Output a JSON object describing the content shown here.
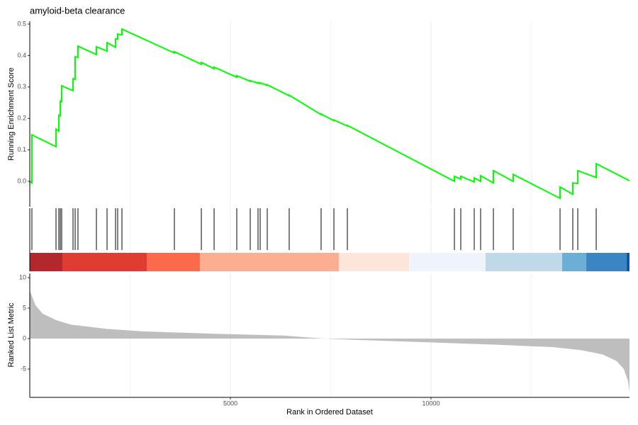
{
  "chart_data": {
    "type": "gsea",
    "title": "amyloid-beta clearance",
    "ylabel": "Running Enrichment Score",
    "ylabel2": "Ranked List Metric",
    "xlabel": "Rank in Ordered Dataset",
    "xlim": [
      0,
      14947
    ],
    "xticks": [
      5000,
      10000
    ],
    "minor_xgrid": [
      2500,
      7500,
      12500
    ],
    "ylim": [
      -0.081,
      0.509
    ],
    "yticks": [
      {
        "value": 0,
        "label": "0.0"
      },
      0.1,
      0.2,
      0.3,
      0.4,
      0.5
    ],
    "line_color": "#00ff00",
    "x": [
      0,
      53,
      53,
      654,
      654,
      724,
      724,
      760,
      760,
      795,
      795,
      1078,
      1078,
      1131,
      1131,
      1201,
      1201,
      1661,
      1661,
      1926,
      1926,
      2138,
      2138,
      2191,
      2191,
      2297,
      2297,
      3604,
      3604,
      4276,
      4276,
      4594,
      4594,
      5159,
      5159,
      5495,
      5495,
      5689,
      5689,
      5742,
      5742,
      5919,
      5919,
      6466,
      6466,
      7261,
      7261,
      7580,
      7580,
      7915,
      7915,
      10583,
      10583,
      10742,
      10742,
      11078,
      11078,
      11237,
      11237,
      11555,
      11555,
      12049,
      12049,
      13216,
      13216,
      13534,
      13534,
      13658,
      13658,
      14117,
      14117,
      14947
    ],
    "values": [
      0,
      -0.005,
      0.148,
      0.11,
      0.166,
      0.16,
      0.21,
      0.208,
      0.255,
      0.253,
      0.304,
      0.288,
      0.326,
      0.324,
      0.396,
      0.394,
      0.43,
      0.403,
      0.428,
      0.414,
      0.441,
      0.426,
      0.453,
      0.452,
      0.468,
      0.466,
      0.484,
      0.408,
      0.412,
      0.372,
      0.378,
      0.358,
      0.363,
      0.331,
      0.336,
      0.318,
      0.32,
      0.312,
      0.314,
      0.311,
      0.313,
      0.305,
      0.307,
      0.272,
      0.274,
      0.212,
      0.214,
      0.193,
      0.195,
      0.176,
      0.178,
      0.0,
      0.016,
      0.007,
      0.016,
      -0.002,
      0.011,
      0.0,
      0.018,
      -0.005,
      0.034,
      0.0,
      0.022,
      -0.054,
      -0.018,
      -0.041,
      -0.005,
      -0.007,
      0.034,
      0.012,
      0.056,
      0.002
    ],
    "hits": [
      0,
      53,
      654,
      724,
      760,
      795,
      1078,
      1131,
      1201,
      1661,
      1926,
      2138,
      2191,
      2297,
      3604,
      4276,
      4594,
      5159,
      5495,
      5689,
      5742,
      5919,
      6466,
      7261,
      7580,
      7915,
      10583,
      10742,
      11078,
      11237,
      11555,
      12049,
      13216,
      13534,
      13658,
      14117
    ],
    "band_breaks": [
      0,
      813,
      2915,
      4240,
      7703,
      9452,
      11360,
      13269,
      13870,
      14877,
      14947
    ],
    "band_colors": [
      "#b2282c",
      "#e03c32",
      "#fb6a4a",
      "#fcae91",
      "#fee5d9",
      "#eff3fb",
      "#c0d9e8",
      "#6baed6",
      "#3a86c2",
      "#14539c"
    ],
    "metric_x": [
      0,
      141,
      318,
      671,
      1025,
      1908,
      2792,
      4558,
      6325,
      7315,
      8093,
      9859,
      11626,
      13039,
      13746,
      14276,
      14630,
      14806,
      14912,
      14947
    ],
    "metric": [
      7.9,
      5.5,
      4.1,
      3.0,
      2.3,
      1.6,
      1.2,
      0.8,
      0.5,
      0.0,
      -0.2,
      -0.6,
      -1.0,
      -1.4,
      -1.9,
      -2.6,
      -3.7,
      -5.0,
      -7.0,
      -8.7
    ],
    "metric_color": "#bebebe",
    "ylim2": [
      -9.65,
      10.7
    ],
    "yticks2": [
      -5,
      0,
      5,
      10
    ]
  }
}
